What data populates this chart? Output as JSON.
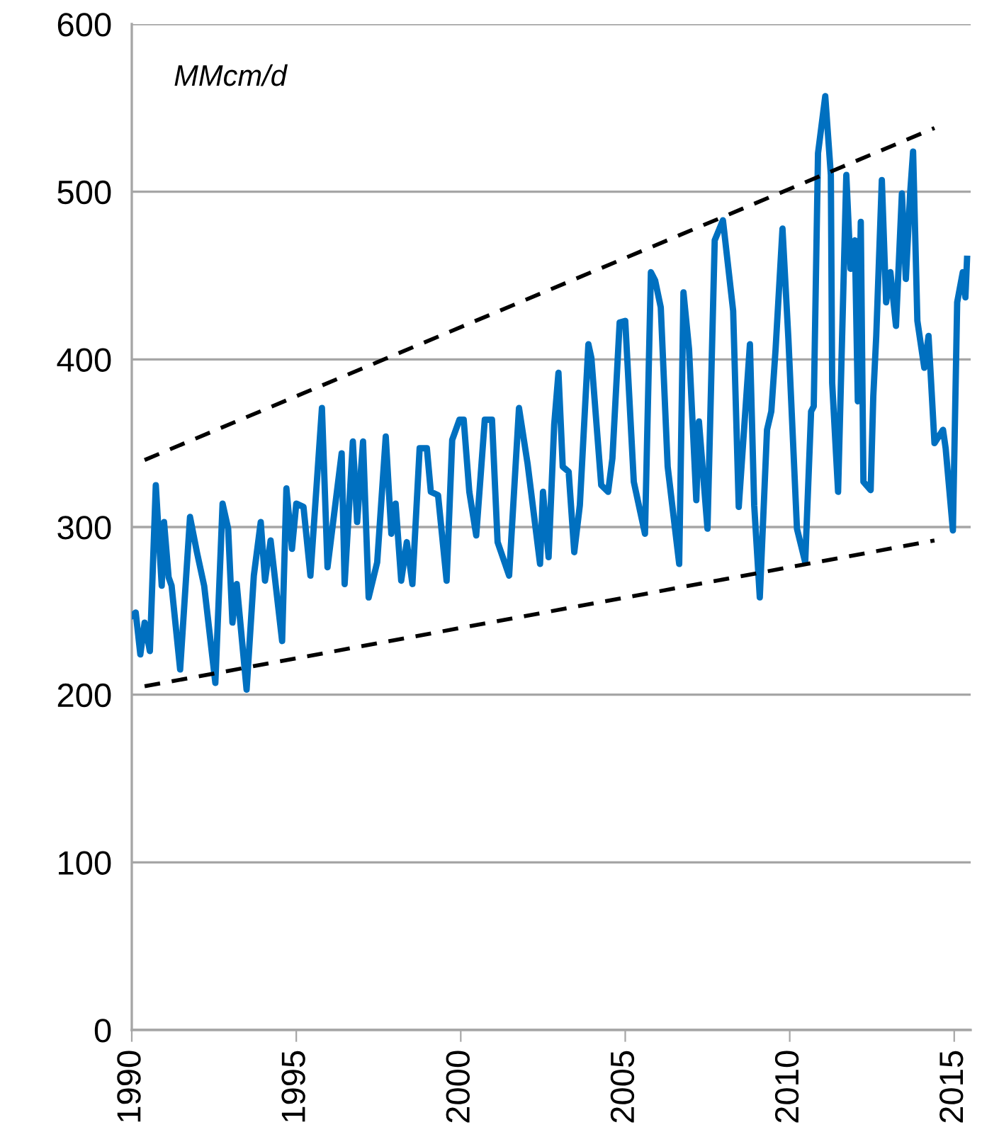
{
  "chart_data": {
    "type": "line",
    "annotations": [
      "MMcm/d"
    ],
    "xlim": [
      1990,
      2015.5
    ],
    "xticks": [
      1990,
      1995,
      2000,
      2005,
      2010,
      2015
    ],
    "ylim": [
      0,
      600
    ],
    "yticks": [
      0,
      100,
      200,
      300,
      400,
      500,
      600
    ],
    "grid": "y",
    "marker": "none",
    "series": [
      {
        "color": "#0070c0",
        "line_style": "solid",
        "x": [
          1990.0,
          1990.12,
          1990.26,
          1990.39,
          1990.55,
          1990.73,
          1990.91,
          1990.98,
          1991.12,
          1991.21,
          1991.47,
          1991.77,
          1991.98,
          1992.2,
          1992.54,
          1992.76,
          1992.93,
          1993.06,
          1993.19,
          1993.49,
          1993.71,
          1993.92,
          1994.05,
          1994.22,
          1994.57,
          1994.7,
          1994.87,
          1995.0,
          1995.22,
          1995.43,
          1995.78,
          1995.95,
          1996.38,
          1996.47,
          1996.72,
          1996.85,
          1997.03,
          1997.2,
          1997.46,
          1997.72,
          1997.89,
          1998.02,
          1998.19,
          1998.36,
          1998.53,
          1998.75,
          1998.97,
          1999.09,
          1999.31,
          1999.57,
          1999.74,
          1999.96,
          2000.09,
          2000.26,
          2000.47,
          2000.73,
          2000.95,
          2001.12,
          2001.47,
          2001.77,
          2002.03,
          2002.41,
          2002.5,
          2002.67,
          2002.84,
          2002.97,
          2003.1,
          2003.28,
          2003.45,
          2003.62,
          2003.88,
          2003.97,
          2004.27,
          2004.48,
          2004.61,
          2004.83,
          2005.0,
          2005.26,
          2005.6,
          2005.78,
          2005.91,
          2006.08,
          2006.29,
          2006.64,
          2006.77,
          2006.94,
          2007.16,
          2007.24,
          2007.5,
          2007.72,
          2007.97,
          2008.28,
          2008.45,
          2008.79,
          2008.92,
          2009.09,
          2009.31,
          2009.44,
          2009.57,
          2009.78,
          2009.96,
          2010.22,
          2010.47,
          2010.65,
          2010.73,
          2010.86,
          2011.08,
          2011.25,
          2011.29,
          2011.47,
          2011.72,
          2011.85,
          2011.98,
          2012.07,
          2012.16,
          2012.24,
          2012.46,
          2012.54,
          2012.63,
          2012.8,
          2012.93,
          2013.06,
          2013.23,
          2013.41,
          2013.53,
          2013.66,
          2013.75,
          2013.88,
          2014.09,
          2014.22,
          2014.4,
          2014.66,
          2014.74,
          2014.96,
          2015.09,
          2015.26,
          2015.34,
          2015.39
        ],
        "values": [
          247,
          249,
          224,
          243,
          226,
          325,
          265,
          303,
          270,
          265,
          215,
          306,
          285,
          265,
          207,
          314,
          299,
          243,
          266,
          203,
          271,
          303,
          268,
          292,
          232,
          323,
          287,
          314,
          312,
          271,
          371,
          276,
          344,
          266,
          351,
          303,
          351,
          258,
          279,
          354,
          296,
          314,
          268,
          291,
          266,
          347,
          347,
          321,
          319,
          268,
          352,
          364,
          364,
          321,
          295,
          364,
          364,
          291,
          271,
          371,
          338,
          278,
          321,
          282,
          361,
          392,
          336,
          333,
          285,
          313,
          409,
          401,
          325,
          321,
          341,
          422,
          423,
          327,
          296,
          452,
          447,
          431,
          336,
          278,
          440,
          406,
          316,
          363,
          299,
          471,
          483,
          429,
          312,
          409,
          313,
          258,
          358,
          369,
          406,
          478,
          412,
          299,
          279,
          369,
          372,
          523,
          557,
          510,
          386,
          321,
          510,
          454,
          471,
          375,
          482,
          327,
          322,
          378,
          414,
          507,
          434,
          452,
          420,
          499,
          448,
          499,
          524,
          423,
          395,
          414,
          350,
          358,
          347,
          298,
          434,
          452,
          437,
          460
        ]
      },
      {
        "type": "line",
        "color": "#000000",
        "line_style": "dashed",
        "x": [
          1990.39,
          2014.4
        ],
        "values": [
          340,
          538
        ]
      },
      {
        "type": "line",
        "color": "#000000",
        "line_style": "dashed",
        "x": [
          1990.39,
          2014.4
        ],
        "values": [
          205,
          292
        ]
      }
    ]
  }
}
